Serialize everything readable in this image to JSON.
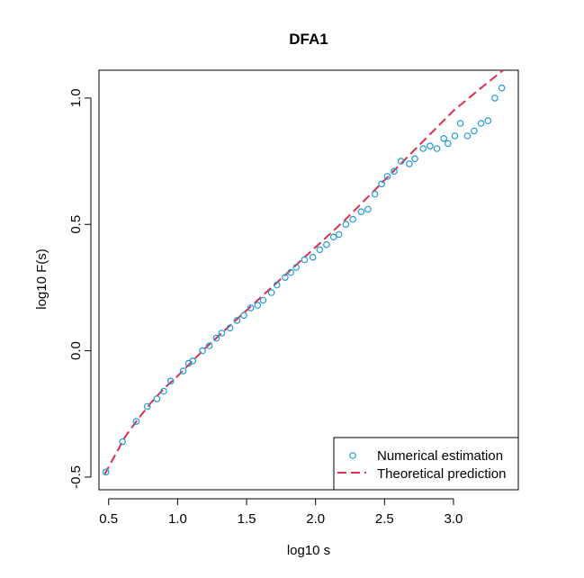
{
  "chart_data": {
    "type": "scatter",
    "title": "DFA1",
    "xlabel": "log10 s",
    "ylabel": "log10 F(s)",
    "xlim": [
      0.43,
      3.47
    ],
    "ylim": [
      -0.55,
      1.11
    ],
    "xticks": [
      0.5,
      1.0,
      1.5,
      2.0,
      2.5,
      3.0
    ],
    "xtick_labels": [
      "0.5",
      "1.0",
      "1.5",
      "2.0",
      "2.5",
      "3.0"
    ],
    "yticks": [
      -0.5,
      0.0,
      0.5,
      1.0
    ],
    "ytick_labels": [
      "-0.5",
      "0.0",
      "0.5",
      "1.0"
    ],
    "grid": false,
    "legend_position": "bottom-right",
    "series": [
      {
        "name": "Numerical estimation",
        "kind": "points",
        "color": "#1E9BD7",
        "x": [
          0.48,
          0.6,
          0.7,
          0.78,
          0.85,
          0.9,
          0.95,
          1.04,
          1.08,
          1.11,
          1.18,
          1.23,
          1.28,
          1.32,
          1.38,
          1.43,
          1.48,
          1.53,
          1.58,
          1.62,
          1.68,
          1.72,
          1.78,
          1.82,
          1.86,
          1.92,
          1.98,
          2.03,
          2.08,
          2.13,
          2.17,
          2.22,
          2.27,
          2.33,
          2.38,
          2.43,
          2.48,
          2.52,
          2.57,
          2.62,
          2.68,
          2.72,
          2.78,
          2.83,
          2.88,
          2.93,
          2.96,
          3.01,
          3.05,
          3.1,
          3.15,
          3.2,
          3.25,
          3.3,
          3.35
        ],
        "y": [
          -0.48,
          -0.36,
          -0.28,
          -0.22,
          -0.19,
          -0.16,
          -0.12,
          -0.08,
          -0.05,
          -0.04,
          0.0,
          0.02,
          0.05,
          0.07,
          0.09,
          0.12,
          0.14,
          0.17,
          0.18,
          0.2,
          0.23,
          0.26,
          0.29,
          0.31,
          0.33,
          0.36,
          0.37,
          0.4,
          0.42,
          0.45,
          0.46,
          0.5,
          0.52,
          0.55,
          0.56,
          0.62,
          0.66,
          0.69,
          0.71,
          0.75,
          0.74,
          0.76,
          0.8,
          0.81,
          0.8,
          0.84,
          0.82,
          0.85,
          0.9,
          0.85,
          0.87,
          0.9,
          0.91,
          1.0,
          1.04
        ]
      },
      {
        "name": "Theoretical prediction",
        "kind": "dashed-line",
        "color": "#DC2F4E",
        "x": [
          0.47,
          0.55,
          0.62,
          0.7,
          0.8,
          0.9,
          1.0,
          1.2,
          1.4,
          1.6,
          1.8,
          2.0,
          2.2,
          2.4,
          2.6,
          2.8,
          3.0,
          3.2,
          3.36
        ],
        "y": [
          -0.49,
          -0.41,
          -0.34,
          -0.28,
          -0.21,
          -0.15,
          -0.1,
          0.01,
          0.11,
          0.21,
          0.31,
          0.41,
          0.51,
          0.62,
          0.73,
          0.84,
          0.95,
          1.04,
          1.11
        ]
      }
    ]
  }
}
